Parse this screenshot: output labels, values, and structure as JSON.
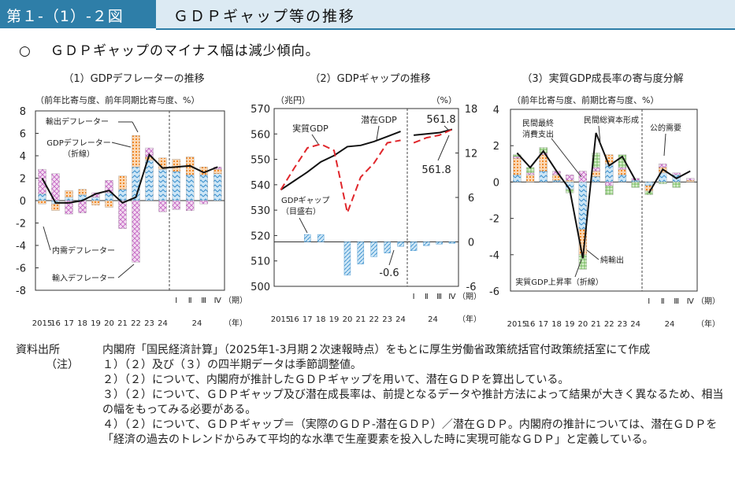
{
  "header": {
    "figure_no": "第１-（1）-２図",
    "title": "ＧＤＰギャップ等の推移"
  },
  "subheading": {
    "mark": "○",
    "text": "ＧＤＰギャップのマイナス幅は減少傾向。"
  },
  "colors": {
    "title_blue": "#2e7ea8",
    "title_bg": "#dceaf3",
    "red": "#e0262b",
    "blue": "#6fb1dc",
    "orange": "#f2a35a",
    "green": "#86c86e",
    "pink": "#dca3dc",
    "black": "#111111"
  },
  "chart_data": [
    {
      "type": "bar",
      "title": "（1）GDPデフレーターの推移",
      "ylabel": "（前年比寄与度、前年同期比寄与度、%）",
      "ylim": [
        -8,
        8
      ],
      "yticks": [
        -8,
        -6,
        -4,
        -2,
        0,
        2,
        4,
        6,
        8
      ],
      "categories": [
        "2015",
        "16",
        "17",
        "18",
        "19",
        "20",
        "21",
        "22",
        "23",
        "24",
        "Ⅰ",
        "Ⅱ",
        "Ⅲ",
        "Ⅳ"
      ],
      "quarter_group_label": "24",
      "period_label": "（期）",
      "year_label": "（年）",
      "series": [
        {
          "name": "輸出デフレーター",
          "values": [
            -0.3,
            -0.6,
            0.6,
            0.5,
            -0.4,
            -0.6,
            1.2,
            2.8,
            0.3,
            1.0,
            1.1,
            1.6,
            0.7,
            0.4
          ]
        },
        {
          "name": "輸入デフレーター",
          "values": [
            2.2,
            2.4,
            -1.2,
            -1.1,
            0.4,
            1.1,
            -2.5,
            -5.5,
            0.8,
            -1.0,
            -0.8,
            -0.9,
            -0.3,
            0.2
          ]
        },
        {
          "name": "内需デフレーター",
          "values": [
            0.6,
            -0.3,
            0.3,
            0.5,
            0.3,
            0.7,
            1.0,
            3.0,
            3.6,
            2.8,
            2.6,
            2.3,
            2.3,
            2.4
          ]
        }
      ],
      "line": {
        "name": "GDPデフレーター（折線）",
        "values": [
          2.0,
          -0.2,
          -0.2,
          0.0,
          0.6,
          0.9,
          -0.2,
          0.3,
          4.1,
          2.9,
          3.0,
          3.1,
          2.5,
          3.0
        ]
      },
      "annotations": [
        "輸出デフレーター",
        "GDPデフレーター",
        "（折線）",
        "内需デフレーター",
        "輸入デフレーター"
      ]
    },
    {
      "type": "line",
      "title": "（2）GDPギャップの推移",
      "ylabel_left": "（兆円）",
      "ylabel_right": "（%）",
      "ylim_left": [
        500,
        570
      ],
      "yticks_left": [
        500,
        510,
        520,
        530,
        540,
        550,
        560,
        570
      ],
      "ylim_right": [
        -6,
        18
      ],
      "yticks_right": [
        -6,
        0,
        6,
        12,
        18
      ],
      "categories": [
        "2015",
        "16",
        "17",
        "18",
        "19",
        "20",
        "21",
        "22",
        "23",
        "24",
        "Ⅰ",
        "Ⅱ",
        "Ⅲ",
        "Ⅳ"
      ],
      "quarter_group_label": "24",
      "period_label": "（期）",
      "year_label": "（年）",
      "series": [
        {
          "name": "実質GDP",
          "values": [
            538.0,
            546.5,
            554.5,
            556.0,
            553.5,
            529.0,
            543.0,
            548.5,
            556.5,
            557.5,
            556.5,
            558.5,
            559.5,
            561.8
          ]
        },
        {
          "name": "潜在GDP",
          "values": [
            538.0,
            541.5,
            545.0,
            549.0,
            551.5,
            555.0,
            555.5,
            557.0,
            559.0,
            561.0,
            559.5,
            560.0,
            560.5,
            561.8
          ]
        }
      ],
      "bars": {
        "name": "GDPギャップ（目盛右）",
        "values": [
          0.0,
          0.0,
          1.0,
          1.0,
          0.0,
          -4.5,
          -3.0,
          -2.0,
          -1.5,
          -0.6,
          -1.2,
          -0.5,
          -0.3,
          -0.2
        ]
      },
      "annotations": [
        "実質GDP",
        "潜在GDP",
        "561.8",
        "561.8",
        "GDPギャップ",
        "（目盛右）",
        "-0.6"
      ]
    },
    {
      "type": "bar",
      "title": "（3）実質GDP成長率の寄与度分解",
      "ylabel": "（前年比寄与度、前期比寄与度、%）",
      "ylim": [
        -6,
        4
      ],
      "yticks": [
        -6,
        -4,
        -2,
        0,
        2,
        4
      ],
      "categories": [
        "2015",
        "16",
        "17",
        "18",
        "19",
        "20",
        "21",
        "22",
        "23",
        "24",
        "Ⅰ",
        "Ⅱ",
        "Ⅲ",
        "Ⅳ"
      ],
      "quarter_group_label": "24",
      "period_label": "（期）",
      "year_label": "（年）",
      "series": [
        {
          "name": "民間最終消費支出",
          "values": [
            0.4,
            0.0,
            0.6,
            0.1,
            -0.4,
            -2.6,
            0.3,
            1.0,
            0.4,
            0.1,
            -0.2,
            0.5,
            0.4,
            0.0
          ]
        },
        {
          "name": "民間総資本形成",
          "values": [
            0.9,
            0.4,
            0.9,
            0.3,
            0.1,
            -1.4,
            0.3,
            0.5,
            0.3,
            0.0,
            -0.3,
            0.3,
            0.0,
            0.1
          ]
        },
        {
          "name": "公的需要",
          "values": [
            0.1,
            0.1,
            0.1,
            0.2,
            0.3,
            0.6,
            0.2,
            -0.2,
            0.1,
            0.1,
            0.0,
            0.2,
            0.1,
            0.1
          ]
        },
        {
          "name": "純輸出",
          "values": [
            0.1,
            0.3,
            0.3,
            0.0,
            -0.2,
            -0.8,
            0.8,
            -0.5,
            0.7,
            -0.3,
            -0.2,
            -0.1,
            -0.3,
            0.0
          ]
        }
      ],
      "line": {
        "name": "実質GDP上昇率（折線）",
        "values": [
          1.6,
          0.8,
          1.7,
          0.6,
          -0.4,
          -4.2,
          2.7,
          0.9,
          1.4,
          0.1,
          -0.6,
          0.7,
          0.2,
          0.6
        ]
      },
      "annotations": [
        "民間最終",
        "消費支出",
        "民間総資本形成",
        "公的需要",
        "純輸出",
        "実質GDP上昇率（折線）"
      ]
    }
  ],
  "notes": {
    "source_label": "資料出所",
    "source_text": "内閣府「国民経済計算」（2025年1-3月期２次速報時点）をもとに厚生労働省政策統括官付政策統括室にて作成",
    "notes_label": "（注）",
    "items": [
      "１）（２）及び（３）の四半期データは季節調整値。",
      "２）（２）について、内閣府が推計したＧＤＰギャップを用いて、潜在ＧＤＰを算出している。",
      "３）（２）について、ＧＤＰギャップ及び潜在成長率は、前提となるデータや推計方法によって結果が大きく異なるため、相当の幅をもってみる必要がある。",
      "４）（２）について、ＧＤＰギャップ＝（実際のＧＤＰ-潜在ＧＤＰ）／潜在ＧＤＰ。内閣府の推計については、潜在ＧＤＰを「経済の過去のトレンドからみて平均的な水準で生産要素を投入した時に実現可能なＧＤＰ」と定義している。"
    ]
  }
}
